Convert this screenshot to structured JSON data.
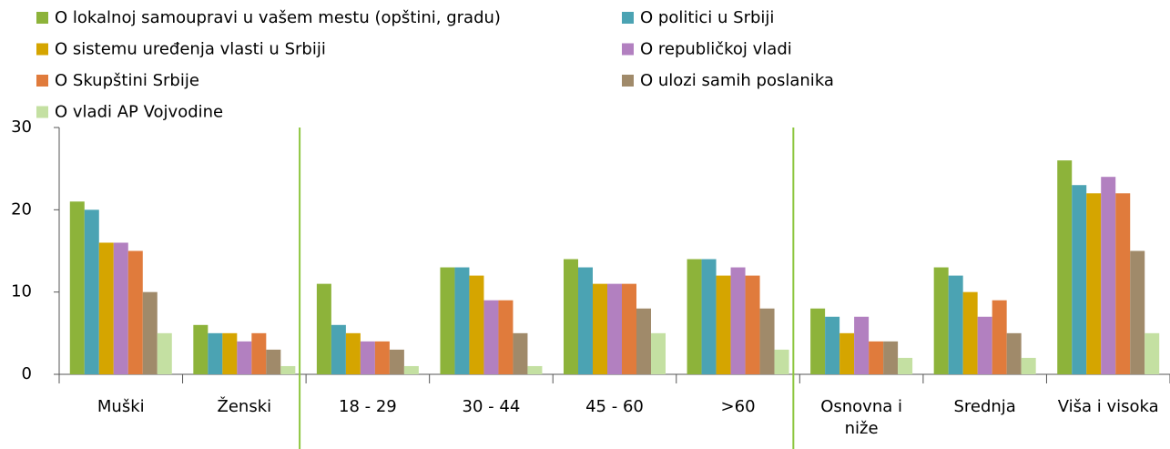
{
  "chart_data": {
    "type": "bar",
    "categories": [
      "Muški",
      "Ženski",
      "18 - 29",
      "30 - 44",
      "45 - 60",
      ">60",
      "Osnovna i niže",
      "Srednja",
      "Viša i visoka"
    ],
    "series": [
      {
        "name": "O lokalnoj samoupravi u vašem mestu (opštini, gradu)",
        "color": "#8db33a",
        "values": [
          21,
          6,
          11,
          13,
          14,
          14,
          8,
          13,
          26
        ]
      },
      {
        "name": "O politici u Srbiji",
        "color": "#4ba3b3",
        "values": [
          20,
          5,
          6,
          13,
          13,
          14,
          7,
          12,
          23
        ]
      },
      {
        "name": "O sistemu uređenja vlasti u Srbiji",
        "color": "#d5a500",
        "values": [
          16,
          5,
          5,
          12,
          11,
          12,
          5,
          10,
          22
        ]
      },
      {
        "name": "O republičkoj vladi",
        "color": "#b280c0",
        "values": [
          16,
          4,
          4,
          9,
          11,
          13,
          7,
          7,
          24
        ]
      },
      {
        "name": "O Skupštini Srbije",
        "color": "#e07b3c",
        "values": [
          15,
          5,
          4,
          9,
          11,
          12,
          4,
          9,
          22
        ]
      },
      {
        "name": "O ulozi samih poslanika",
        "color": "#a08a6a",
        "values": [
          10,
          3,
          3,
          5,
          8,
          8,
          4,
          5,
          15
        ]
      },
      {
        "name": "O vladi AP Vojvodine",
        "color": "#c4e0a2",
        "values": [
          5,
          1,
          1,
          1,
          5,
          3,
          2,
          2,
          5
        ]
      }
    ],
    "ylim": [
      0,
      30
    ],
    "yticks": [
      0,
      10,
      20,
      30
    ],
    "grid": false
  }
}
